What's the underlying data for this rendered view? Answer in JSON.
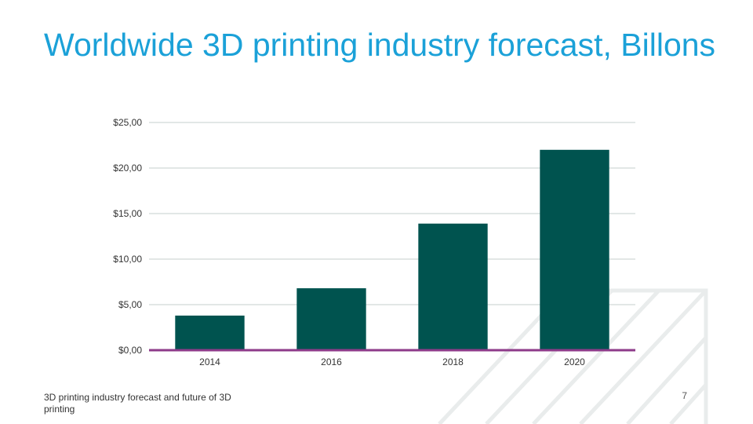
{
  "slide": {
    "title": "Worldwide 3D printing industry forecast, Billons",
    "footer": "3D printing industry forecast and future of 3D printing",
    "page_number": "7"
  },
  "colors": {
    "title": "#1ba1d8",
    "bar": "#00534f",
    "baseline": "#8e3b8a",
    "gridline": "#c6cfcd",
    "decoration": "#e9ecec"
  },
  "chart_data": {
    "type": "bar",
    "categories": [
      "2014",
      "2016",
      "2018",
      "2020"
    ],
    "values": [
      3.8,
      6.8,
      13.9,
      22
    ],
    "ylim": [
      0,
      25
    ],
    "yticks": [
      0,
      5,
      10,
      15,
      20,
      25
    ],
    "ytick_labels": [
      "$0,00",
      "$5,00",
      "$10,00",
      "$15,00",
      "$20,00",
      "$25,00"
    ],
    "grid": true,
    "legend": "none"
  }
}
